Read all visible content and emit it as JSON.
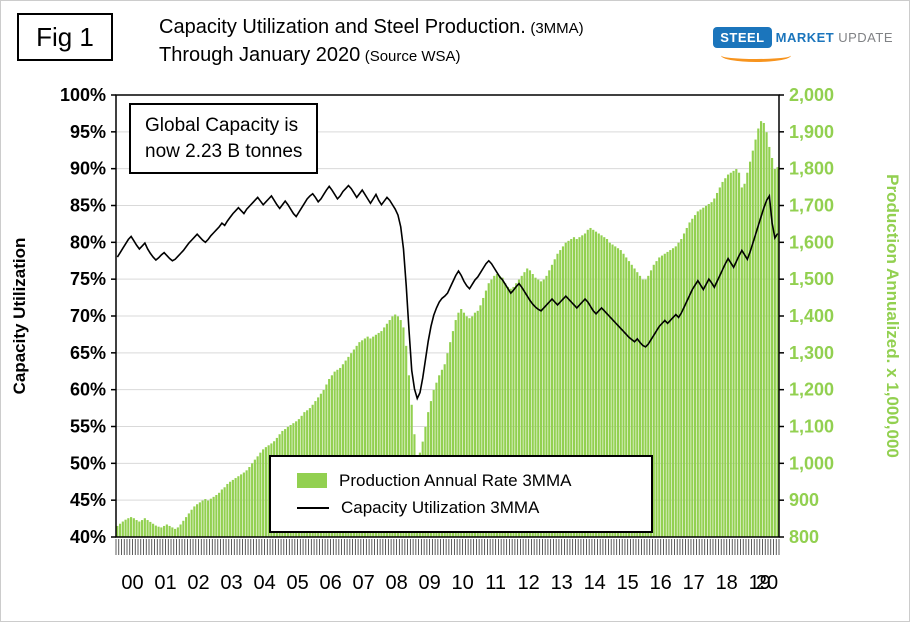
{
  "figure_label": "Fig 1",
  "title": {
    "line1_main": "Capacity Utilization and Steel Production.",
    "line1_suffix": "(3MMA)",
    "line2_main": "Through January 2020",
    "line2_suffix": "(Source WSA)"
  },
  "logo": {
    "steel": "STEEL",
    "market": "MARKET",
    "update": "UPDATE"
  },
  "annotation": {
    "line1": "Global Capacity is",
    "line2": "now 2.23 B tonnes"
  },
  "legend": {
    "items": [
      {
        "label": "Production Annual Rate 3MMA",
        "color": "#92D050"
      },
      {
        "label": "Capacity Utilization 3MMA",
        "color": "#000000"
      }
    ]
  },
  "colors": {
    "bar_green": "#92D050",
    "grid_gray": "#D9D9D9",
    "logo_blue": "#1B75BC",
    "logo_orange": "#F7941E",
    "logo_gray": "#808285"
  },
  "chart_data": {
    "type": "combo",
    "x_unit": "month",
    "x_start": "2000-01",
    "x_end": "2020-01",
    "x_axis": {
      "year_labels": [
        "00",
        "01",
        "02",
        "03",
        "04",
        "05",
        "06",
        "07",
        "08",
        "09",
        "10",
        "11",
        "12",
        "13",
        "14",
        "15",
        "16",
        "17",
        "18",
        "19",
        "20"
      ]
    },
    "left_axis": {
      "title": "Capacity Utilization",
      "min": 40,
      "max": 100,
      "step": 5,
      "tick_labels": [
        "100%",
        "95%",
        "90%",
        "85%",
        "80%",
        "75%",
        "70%",
        "65%",
        "60%",
        "55%",
        "50%",
        "45%",
        "40%"
      ]
    },
    "right_axis": {
      "title": "Production Annualized. x 1,000,000",
      "min": 800,
      "max": 2000,
      "step": 100,
      "tick_labels": [
        "2,000",
        "1,900",
        "1,800",
        "1,700",
        "1,600",
        "1,500",
        "1,400",
        "1,300",
        "1,200",
        "1,100",
        "1,000",
        "900",
        "800"
      ]
    },
    "series": [
      {
        "name": "Production Annual Rate 3MMA",
        "type": "bar",
        "axis": "right",
        "color": "#92D050",
        "values": [
          830,
          836,
          842,
          847,
          851,
          854,
          851,
          846,
          842,
          846,
          851,
          846,
          841,
          836,
          831,
          828,
          826,
          830,
          834,
          830,
          826,
          822,
          826,
          834,
          844,
          854,
          864,
          874,
          883,
          889,
          894,
          899,
          903,
          899,
          904,
          909,
          914,
          920,
          929,
          935,
          944,
          950,
          955,
          960,
          965,
          970,
          975,
          981,
          990,
          1000,
          1010,
          1019,
          1029,
          1038,
          1044,
          1049,
          1054,
          1060,
          1069,
          1079,
          1088,
          1093,
          1099,
          1104,
          1109,
          1114,
          1120,
          1129,
          1139,
          1144,
          1150,
          1159,
          1169,
          1179,
          1189,
          1199,
          1214,
          1229,
          1239,
          1249,
          1254,
          1259,
          1269,
          1279,
          1289,
          1299,
          1309,
          1319,
          1329,
          1334,
          1339,
          1344,
          1339,
          1344,
          1349,
          1354,
          1359,
          1369,
          1379,
          1389,
          1399,
          1404,
          1399,
          1389,
          1369,
          1319,
          1239,
          1159,
          1079,
          1019,
          1029,
          1059,
          1099,
          1139,
          1169,
          1199,
          1219,
          1239,
          1254,
          1269,
          1299,
          1329,
          1359,
          1389,
          1409,
          1419,
          1409,
          1399,
          1394,
          1399,
          1409,
          1414,
          1429,
          1449,
          1469,
          1489,
          1499,
          1509,
          1514,
          1509,
          1504,
          1489,
          1479,
          1474,
          1479,
          1489,
          1499,
          1509,
          1519,
          1529,
          1524,
          1514,
          1504,
          1499,
          1494,
          1499,
          1509,
          1524,
          1539,
          1554,
          1569,
          1579,
          1589,
          1599,
          1604,
          1609,
          1614,
          1609,
          1614,
          1619,
          1624,
          1634,
          1639,
          1634,
          1629,
          1624,
          1619,
          1614,
          1609,
          1599,
          1594,
          1589,
          1584,
          1579,
          1569,
          1559,
          1549,
          1539,
          1529,
          1519,
          1509,
          1499,
          1499,
          1509,
          1524,
          1539,
          1549,
          1559,
          1564,
          1569,
          1574,
          1579,
          1584,
          1589,
          1599,
          1609,
          1624,
          1639,
          1654,
          1664,
          1674,
          1684,
          1689,
          1694,
          1699,
          1704,
          1709,
          1719,
          1734,
          1749,
          1764,
          1774,
          1784,
          1789,
          1794,
          1799,
          1789,
          1749,
          1759,
          1789,
          1819,
          1849,
          1879,
          1909,
          1929,
          1924,
          1899,
          1859,
          1829,
          1799,
          1804
        ]
      },
      {
        "name": "Capacity Utilization 3MMA",
        "type": "line",
        "axis": "left",
        "color": "#000000",
        "values": [
          78.0,
          78.6,
          79.2,
          79.8,
          80.4,
          80.8,
          80.2,
          79.6,
          79.1,
          79.5,
          79.9,
          79.1,
          78.5,
          78.0,
          77.6,
          77.9,
          78.3,
          78.6,
          78.2,
          77.8,
          77.5,
          77.7,
          78.1,
          78.5,
          78.9,
          79.4,
          79.9,
          80.3,
          80.7,
          81.1,
          80.7,
          80.3,
          80.0,
          80.4,
          80.9,
          81.3,
          81.7,
          82.1,
          82.6,
          82.3,
          82.9,
          83.4,
          83.9,
          84.3,
          84.7,
          84.3,
          83.9,
          84.5,
          84.9,
          85.3,
          85.7,
          86.1,
          85.6,
          85.1,
          85.5,
          85.9,
          86.3,
          85.7,
          85.1,
          84.6,
          85.1,
          85.6,
          85.1,
          84.5,
          83.9,
          83.5,
          84.1,
          84.7,
          85.3,
          85.9,
          86.3,
          86.6,
          86.1,
          85.5,
          85.9,
          86.5,
          87.1,
          87.6,
          87.1,
          86.5,
          85.9,
          86.3,
          86.9,
          87.3,
          87.7,
          87.3,
          86.7,
          86.1,
          86.6,
          87.1,
          86.5,
          85.9,
          85.3,
          85.9,
          86.5,
          85.7,
          85.1,
          85.6,
          86.1,
          85.7,
          85.1,
          84.5,
          83.7,
          82.1,
          79.1,
          74.1,
          68.1,
          62.6,
          60.1,
          58.8,
          59.6,
          61.6,
          64.1,
          66.6,
          68.6,
          70.1,
          71.1,
          71.9,
          72.4,
          72.7,
          73.1,
          73.9,
          74.7,
          75.5,
          76.1,
          75.5,
          74.7,
          74.1,
          73.7,
          74.3,
          74.9,
          75.3,
          75.9,
          76.5,
          77.1,
          77.5,
          77.1,
          76.5,
          75.9,
          75.3,
          74.9,
          74.3,
          73.7,
          73.1,
          73.5,
          74.0,
          74.4,
          73.9,
          73.3,
          72.7,
          72.1,
          71.6,
          71.2,
          70.9,
          70.7,
          71.1,
          71.5,
          71.9,
          72.3,
          71.9,
          71.5,
          71.9,
          72.3,
          72.7,
          72.3,
          71.9,
          71.5,
          71.1,
          71.5,
          71.9,
          72.3,
          71.9,
          71.3,
          70.7,
          70.3,
          70.7,
          71.1,
          70.7,
          70.3,
          69.9,
          69.5,
          69.1,
          68.7,
          68.3,
          67.9,
          67.5,
          67.1,
          66.8,
          66.5,
          66.9,
          66.4,
          66.0,
          65.8,
          66.2,
          66.8,
          67.4,
          68.0,
          68.6,
          69.0,
          69.4,
          69.0,
          69.4,
          69.8,
          70.2,
          69.8,
          70.4,
          71.2,
          72.0,
          72.8,
          73.6,
          74.2,
          74.8,
          74.2,
          73.6,
          74.3,
          75.0,
          74.5,
          73.9,
          74.7,
          75.5,
          76.3,
          77.1,
          77.8,
          77.2,
          76.6,
          77.4,
          78.2,
          78.9,
          78.3,
          77.7,
          78.7,
          79.9,
          81.1,
          82.3,
          83.5,
          84.7,
          85.7,
          86.3,
          82.6,
          80.6,
          81.2
        ]
      }
    ]
  }
}
